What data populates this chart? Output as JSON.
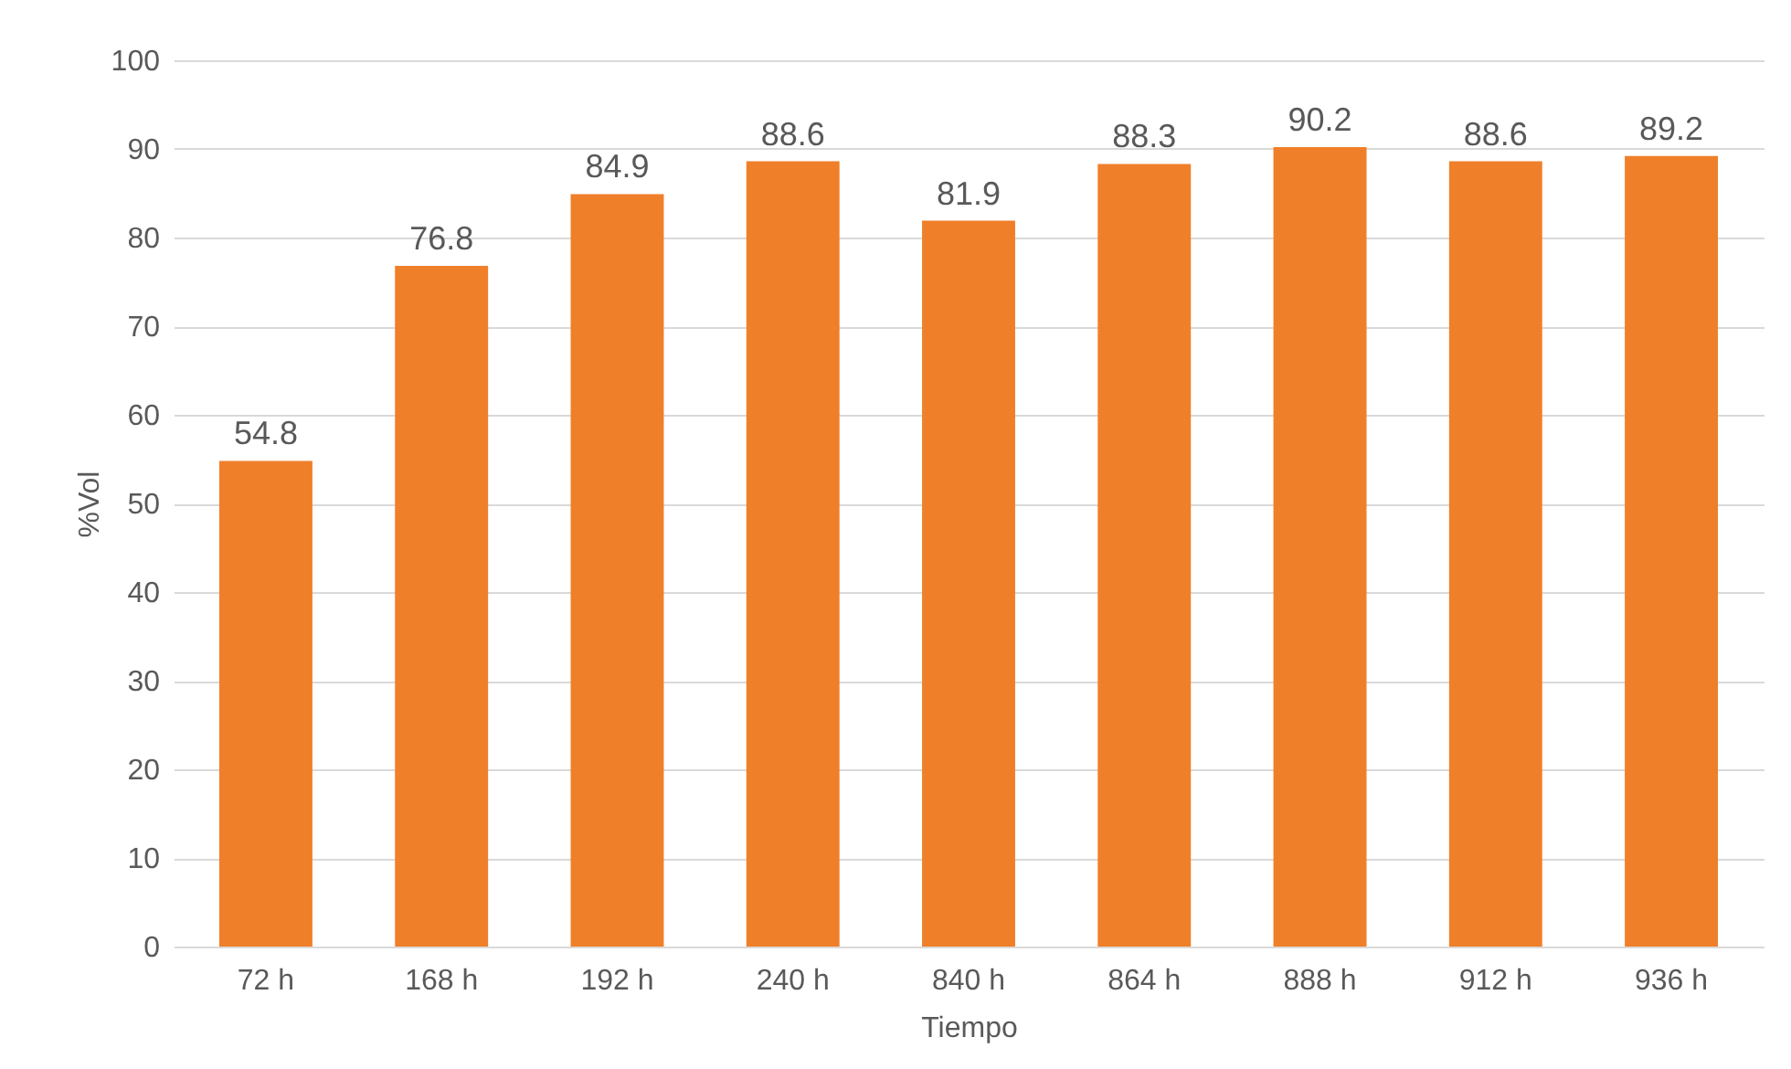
{
  "chart_data": {
    "type": "bar",
    "xlabel": "Tiempo",
    "ylabel": "%Vol",
    "categories": [
      "72 h",
      "168 h",
      "192 h",
      "240 h",
      "840 h",
      "864 h",
      "888 h",
      "912 h",
      "936 h"
    ],
    "values": [
      54.8,
      76.8,
      84.9,
      88.6,
      81.9,
      88.3,
      90.2,
      88.6,
      89.2
    ],
    "color": "#f07f2a",
    "ylim": [
      0,
      100
    ],
    "yticks": [
      0,
      10,
      20,
      30,
      40,
      50,
      60,
      70,
      80,
      90,
      100
    ],
    "grid": "y",
    "data_labels": true
  }
}
